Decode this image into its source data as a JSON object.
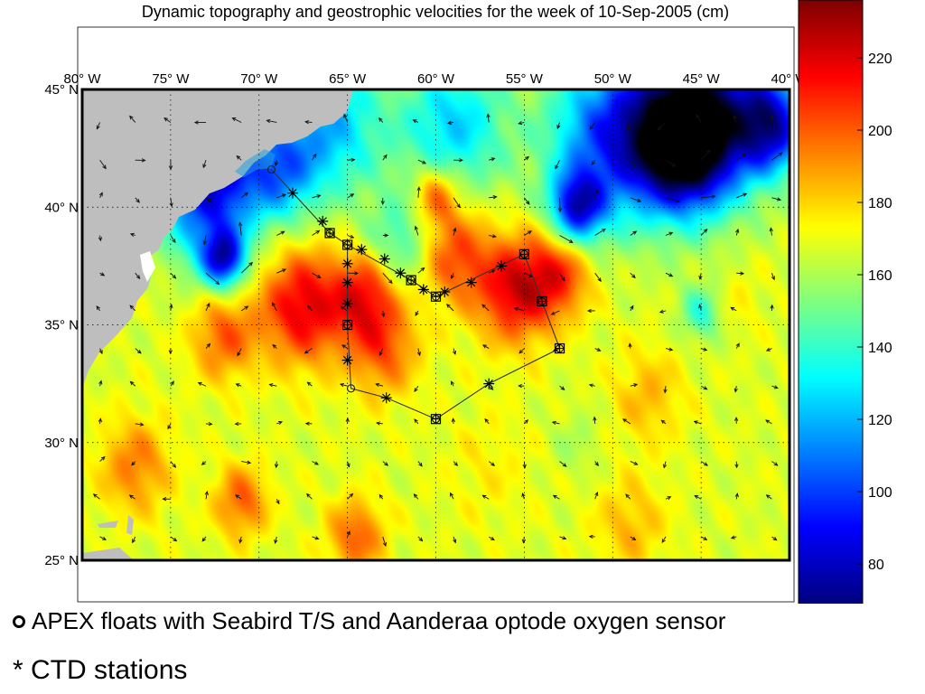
{
  "chart_data": {
    "type": "heatmap",
    "title": "Dynamic topography and geostrophic velocities for the week of 10-Sep-2005 (cm)",
    "x_tick_labels": [
      "80° W",
      "75° W",
      "70° W",
      "65° W",
      "60° W",
      "55° W",
      "50° W",
      "45° W",
      "40° W"
    ],
    "x_ticks": [
      -80,
      -75,
      -70,
      -65,
      -60,
      -55,
      -50,
      -45,
      -40
    ],
    "y_tick_labels": [
      "45° N",
      "40° N",
      "35° N",
      "30° N",
      "25° N"
    ],
    "y_ticks": [
      45,
      40,
      35,
      30,
      25
    ],
    "xlim": [
      -80,
      -40
    ],
    "ylim": [
      25,
      45
    ],
    "grid": true,
    "colorbar": {
      "ticks": [
        220,
        200,
        180,
        160,
        140,
        120,
        100,
        80
      ],
      "range": [
        69,
        236
      ],
      "colormap": "jet"
    },
    "apex_floats": [
      {
        "lon": -69.3,
        "lat": 41.6
      },
      {
        "lon": -64.8,
        "lat": 32.3
      }
    ],
    "ctd_stations": [
      {
        "lon": -68.1,
        "lat": 40.6
      },
      {
        "lon": -66.4,
        "lat": 39.4
      },
      {
        "lon": -64.2,
        "lat": 38.2
      },
      {
        "lon": -62.9,
        "lat": 37.8
      },
      {
        "lon": -62.0,
        "lat": 37.2
      },
      {
        "lon": -60.7,
        "lat": 36.5
      },
      {
        "lon": -59.5,
        "lat": 36.4
      },
      {
        "lon": -58.0,
        "lat": 36.8
      },
      {
        "lon": -56.3,
        "lat": 37.5
      },
      {
        "lon": -65.0,
        "lat": 37.6
      },
      {
        "lon": -65.0,
        "lat": 36.8
      },
      {
        "lon": -65.0,
        "lat": 35.9
      },
      {
        "lon": -65.0,
        "lat": 33.5
      },
      {
        "lon": -62.8,
        "lat": 31.9
      },
      {
        "lon": -57.0,
        "lat": 32.5
      }
    ],
    "ctd_float_stations": [
      {
        "lon": -66.0,
        "lat": 38.9
      },
      {
        "lon": -65.0,
        "lat": 38.4
      },
      {
        "lon": -61.4,
        "lat": 36.9
      },
      {
        "lon": -60.0,
        "lat": 36.2
      },
      {
        "lon": -55.0,
        "lat": 38.0
      },
      {
        "lon": -54.0,
        "lat": 36.0
      },
      {
        "lon": -53.0,
        "lat": 34.0
      },
      {
        "lon": -60.0,
        "lat": 31.0
      },
      {
        "lon": -65.0,
        "lat": 35.0
      }
    ],
    "sections": [
      [
        [
          -69.3,
          41.6
        ],
        [
          -66.0,
          38.9
        ],
        [
          -65.0,
          38.4
        ],
        [
          -61.4,
          36.9
        ],
        [
          -60.0,
          36.2
        ],
        [
          -55.0,
          38.0
        ],
        [
          -54.0,
          36.0
        ],
        [
          -53.0,
          34.0
        ],
        [
          -57.0,
          32.5
        ],
        [
          -60.0,
          31.0
        ],
        [
          -62.8,
          31.9
        ],
        [
          -64.8,
          32.3
        ],
        [
          -65.0,
          35.0
        ],
        [
          -65.0,
          38.4
        ]
      ]
    ],
    "field_features": [
      {
        "lon": -77.5,
        "lat": 43.5,
        "value": 110,
        "spread": 2.0
      },
      {
        "lon": -72.5,
        "lat": 42.5,
        "value": 115,
        "spread": 2.4
      },
      {
        "lon": -69,
        "lat": 41.5,
        "value": 118,
        "spread": 2.2
      },
      {
        "lon": -66,
        "lat": 43.5,
        "value": 122,
        "spread": 3.0
      },
      {
        "lon": -59,
        "lat": 43.5,
        "value": 125,
        "spread": 3.0
      },
      {
        "lon": -50,
        "lat": 43,
        "value": 100,
        "spread": 3.5
      },
      {
        "lon": -45,
        "lat": 44,
        "value": 75,
        "spread": 3.5
      },
      {
        "lon": -46,
        "lat": 42.5,
        "value": 85,
        "spread": 2.5
      },
      {
        "lon": -41,
        "lat": 43.5,
        "value": 90,
        "spread": 2.0
      },
      {
        "lon": -52,
        "lat": 40,
        "value": 95,
        "spread": 1.5
      },
      {
        "lon": -72,
        "lat": 37.8,
        "value": 95,
        "spread": 1.2
      },
      {
        "lon": -73,
        "lat": 40,
        "value": 110,
        "spread": 2.5
      },
      {
        "lon": -62,
        "lat": 38.5,
        "value": 140,
        "spread": 2.0
      },
      {
        "lon": -67.5,
        "lat": 35.8,
        "value": 220,
        "spread": 2.4
      },
      {
        "lon": -64,
        "lat": 36.3,
        "value": 210,
        "spread": 1.8
      },
      {
        "lon": -59,
        "lat": 38,
        "value": 205,
        "spread": 2.0
      },
      {
        "lon": -55.5,
        "lat": 36.5,
        "value": 220,
        "spread": 2.2
      },
      {
        "lon": -60,
        "lat": 40.5,
        "value": 205,
        "spread": 1.3
      },
      {
        "lon": -53,
        "lat": 37.2,
        "value": 205,
        "spread": 1.8
      },
      {
        "lon": -63,
        "lat": 34,
        "value": 200,
        "spread": 2.0
      },
      {
        "lon": -72,
        "lat": 34.5,
        "value": 200,
        "spread": 1.8
      },
      {
        "lon": -77,
        "lat": 29,
        "value": 195,
        "spread": 2.0
      },
      {
        "lon": -71,
        "lat": 27.5,
        "value": 200,
        "spread": 1.5
      },
      {
        "lon": -64.5,
        "lat": 26,
        "value": 200,
        "spread": 1.6
      },
      {
        "lon": -49,
        "lat": 26.5,
        "value": 185,
        "spread": 2.0
      },
      {
        "lon": -45,
        "lat": 35.5,
        "value": 140,
        "spread": 1.2
      },
      {
        "lon": -43,
        "lat": 36,
        "value": 175,
        "spread": 1.4
      },
      {
        "lon": -48,
        "lat": 32,
        "value": 185,
        "spread": 2.0
      },
      {
        "lon": -57,
        "lat": 29,
        "value": 175,
        "spread": 2.5
      },
      {
        "lon": -52,
        "lat": 30,
        "value": 160,
        "spread": 1.5
      }
    ],
    "field_base_value": 168
  },
  "legend": {
    "apex_label": "APEX floats with Seabird T/S and Aanderaa optode oxygen sensor",
    "ctd_label": "* CTD stations"
  },
  "colors": {
    "land": "#bebebe",
    "frame": "#000000",
    "grid": "#000000",
    "section_line": "#333333"
  }
}
